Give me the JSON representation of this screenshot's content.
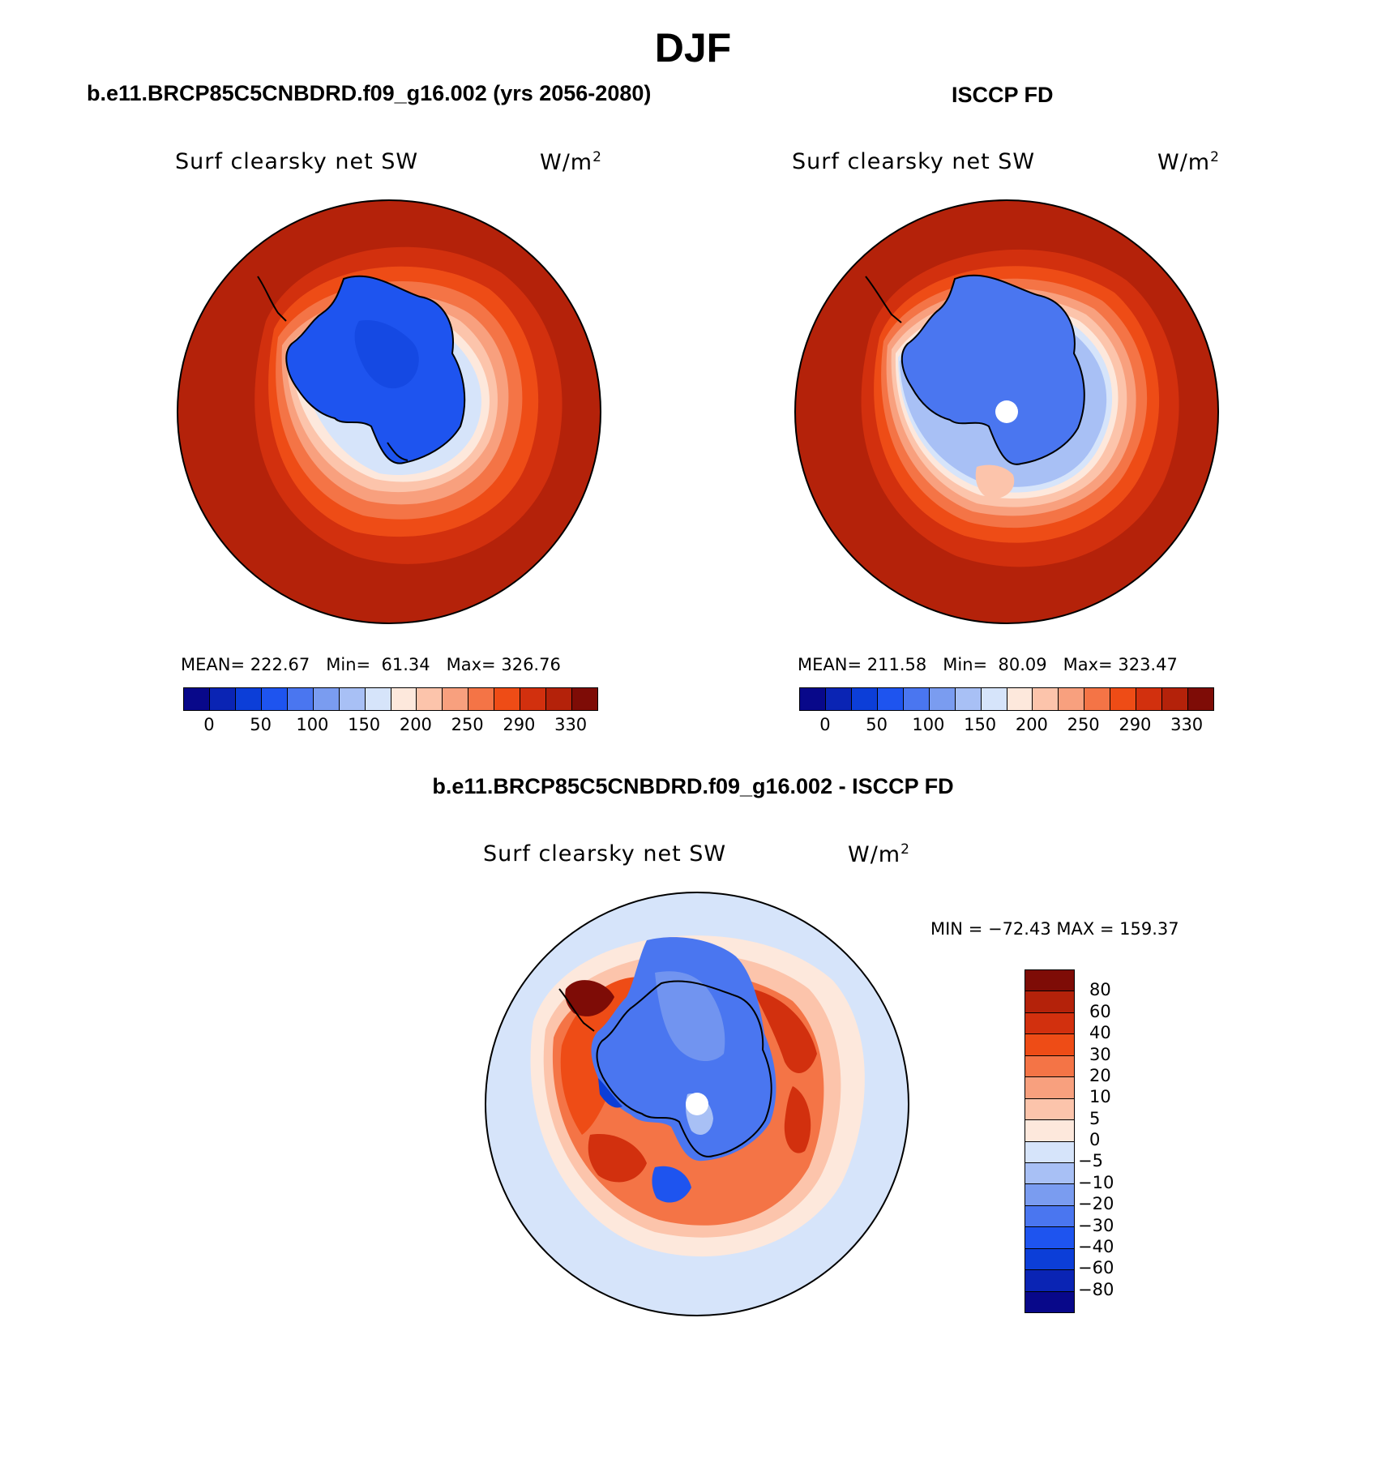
{
  "title": "DJF",
  "colors": {
    "abs_scale": [
      "#08088a",
      "#0a24b4",
      "#0c3ed8",
      "#1e54ef",
      "#4a76f0",
      "#7a9cf0",
      "#a8c0f5",
      "#d6e4fa",
      "#fde8dc",
      "#fcc4ab",
      "#f8a07e",
      "#f47446",
      "#ee4c16",
      "#d2300e",
      "#b4220a",
      "#7e0c06"
    ],
    "diff_scale": [
      "#08088a",
      "#0a24b4",
      "#0c3ed8",
      "#1e54ef",
      "#4a76f0",
      "#7a9cf0",
      "#a8c0f5",
      "#d6e4fa",
      "#fde8dc",
      "#fcc4ab",
      "#f8a07e",
      "#f47446",
      "#ee4c16",
      "#d2300e",
      "#b4220a",
      "#7e0c06"
    ],
    "outline": "#000000"
  },
  "panels": [
    {
      "title": "b.e11.BRCP85C5CNBDRD.f09_g16.002 (yrs 2056-2080)",
      "variable_label": "Surf clearsky net SW",
      "units_base": "W/m",
      "units_exp": "2",
      "stats": {
        "mean_label": "MEAN=",
        "mean": "222.67",
        "min_label": "Min=",
        "min": "61.34",
        "max_label": "Max=",
        "max": "326.76"
      },
      "colorbar_ticks": [
        "0",
        "50",
        "100",
        "150",
        "200",
        "250",
        "290",
        "330"
      ]
    },
    {
      "title": "ISCCP FD",
      "variable_label": "Surf clearsky net SW",
      "units_base": "W/m",
      "units_exp": "2",
      "stats": {
        "mean_label": "MEAN=",
        "mean": "211.58",
        "min_label": "Min=",
        "min": "80.09",
        "max_label": "Max=",
        "max": "323.47"
      },
      "colorbar_ticks": [
        "0",
        "50",
        "100",
        "150",
        "200",
        "250",
        "290",
        "330"
      ]
    }
  ],
  "difference": {
    "title": "b.e11.BRCP85C5CNBDRD.f09_g16.002 - ISCCP FD",
    "variable_label": "Surf clearsky net SW",
    "units_base": "W/m",
    "units_exp": "2",
    "minmax": "MIN = −72.43 MAX = 159.37",
    "colorbar_labels": [
      "80",
      "60",
      "40",
      "30",
      "20",
      "10",
      "5",
      "0",
      "−5",
      "−10",
      "−20",
      "−30",
      "−40",
      "−60",
      "−80"
    ]
  }
}
